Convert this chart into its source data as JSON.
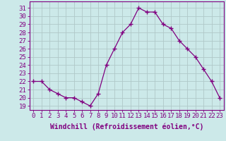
{
  "hours": [
    0,
    1,
    2,
    3,
    4,
    5,
    6,
    7,
    8,
    9,
    10,
    11,
    12,
    13,
    14,
    15,
    16,
    17,
    18,
    19,
    20,
    21,
    22,
    23
  ],
  "values": [
    22,
    22,
    21,
    20.5,
    20,
    20,
    19.5,
    19,
    20.5,
    24,
    26,
    28,
    29,
    31,
    30.5,
    30.5,
    29,
    28.5,
    27,
    26,
    25,
    23.5,
    22,
    20
  ],
  "line_color": "#800080",
  "marker": "+",
  "marker_size": 4,
  "xlabel": "Windchill (Refroidissement éolien,°C)",
  "ylabel_ticks": [
    19,
    20,
    21,
    22,
    23,
    24,
    25,
    26,
    27,
    28,
    29,
    30,
    31
  ],
  "ylim": [
    18.5,
    31.8
  ],
  "xlim": [
    -0.5,
    23.5
  ],
  "background_color": "#cce9e9",
  "grid_color": "#b0c8c8",
  "tick_color": "#800080",
  "label_color": "#800080",
  "xlabel_fontsize": 7,
  "tick_fontsize": 6.5
}
